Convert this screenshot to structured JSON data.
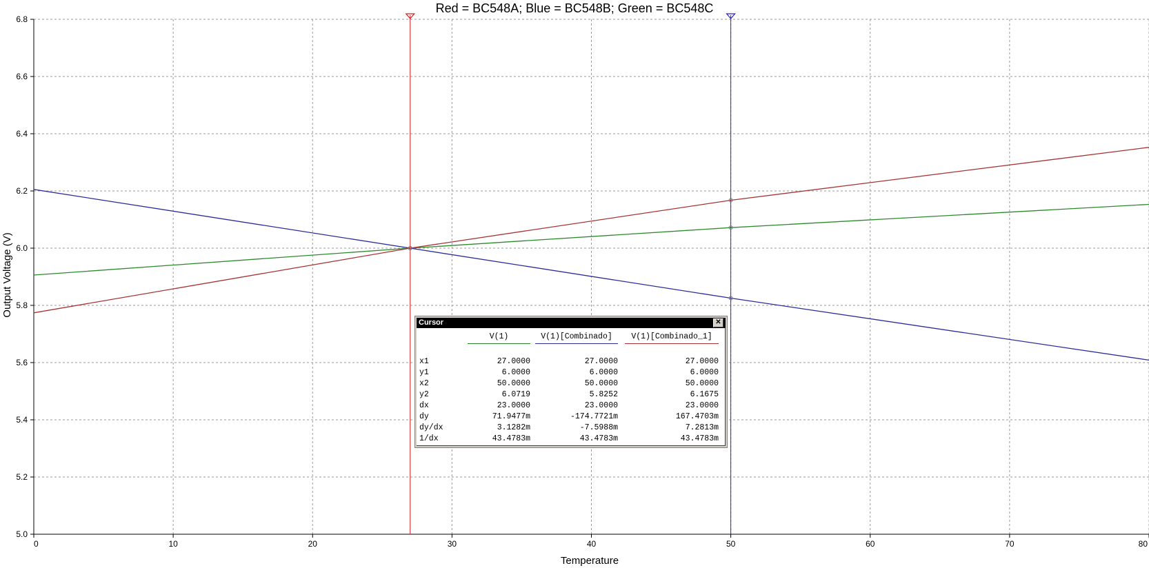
{
  "chart_data": {
    "type": "line",
    "title": "Red = BC548A; Blue = BC548B; Green = BC548C",
    "xlabel": "Temperature",
    "ylabel": "Output Voltage (V)",
    "xlim": [
      0,
      80
    ],
    "ylim": [
      5.0,
      6.8
    ],
    "xticks": [
      "0",
      "10",
      "20",
      "30",
      "40",
      "50",
      "60",
      "70",
      "80"
    ],
    "yticks": [
      "5.0",
      "5.2",
      "5.4",
      "5.6",
      "5.8",
      "6.0",
      "6.2",
      "6.4",
      "6.6",
      "6.8"
    ],
    "grid": true,
    "series": [
      {
        "color": "#2a8a2a",
        "x": [
          0,
          27,
          50,
          80
        ],
        "y": [
          5.9061,
          6.0,
          6.0719,
          6.1529
        ]
      },
      {
        "color": "#2b2b9c",
        "x": [
          0,
          27,
          50,
          80
        ],
        "y": [
          6.2052,
          6.0,
          5.8252,
          5.6086
        ]
      },
      {
        "color": "#a83232",
        "x": [
          0,
          27,
          50,
          80
        ],
        "y": [
          5.774,
          6.0,
          6.1675,
          6.3525
        ]
      }
    ],
    "cursors": [
      {
        "x": 27,
        "color": "#d42020"
      },
      {
        "x": 50,
        "color": "#2020d4"
      }
    ]
  },
  "cursor_window": {
    "title": "Cursor",
    "close_label": "✕",
    "columns": [
      {
        "label": "V(1)",
        "color": "#2a8a2a"
      },
      {
        "label": "V(1)[Combinado]",
        "color": "#2b2b9c"
      },
      {
        "label": "V(1)[Combinado_1]",
        "color": "#a83232"
      }
    ],
    "rows": [
      {
        "label": "x1",
        "values": [
          "27.0000",
          "27.0000",
          "27.0000"
        ]
      },
      {
        "label": "y1",
        "values": [
          "6.0000",
          "6.0000",
          "6.0000"
        ]
      },
      {
        "label": "x2",
        "values": [
          "50.0000",
          "50.0000",
          "50.0000"
        ]
      },
      {
        "label": "y2",
        "values": [
          "6.0719",
          "5.8252",
          "6.1675"
        ]
      },
      {
        "label": "dx",
        "values": [
          "23.0000",
          "23.0000",
          "23.0000"
        ]
      },
      {
        "label": "dy",
        "values": [
          "71.9477m",
          "-174.7721m",
          "167.4703m"
        ]
      },
      {
        "label": "dy/dx",
        "values": [
          "3.1282m",
          "-7.5988m",
          "7.2813m"
        ]
      },
      {
        "label": "1/dx",
        "values": [
          "43.4783m",
          "43.4783m",
          "43.4783m"
        ]
      }
    ]
  }
}
